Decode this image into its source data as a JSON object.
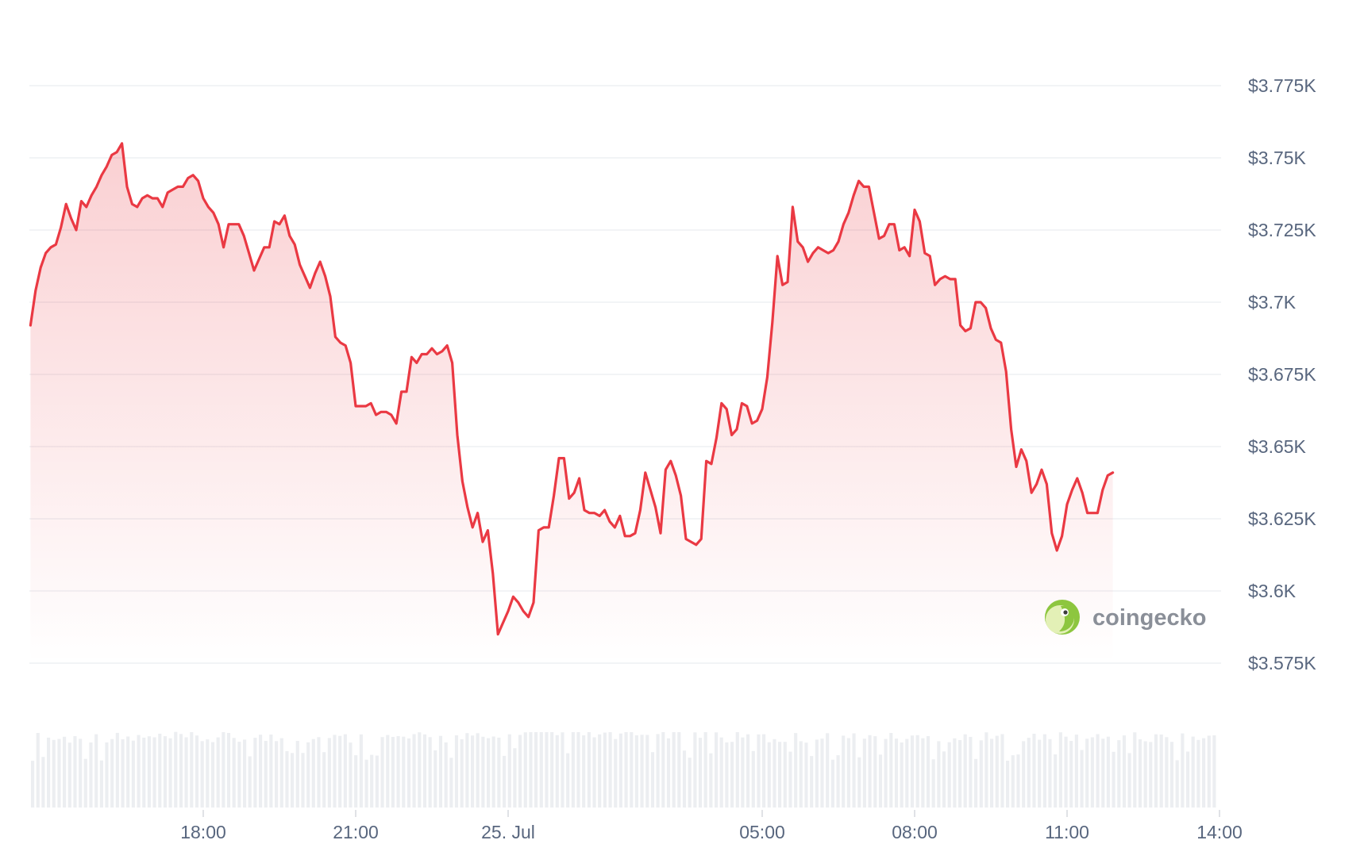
{
  "chart_data": {
    "type": "area",
    "y_ticks": [
      "$3.775K",
      "$3.75K",
      "$3.725K",
      "$3.7K",
      "$3.675K",
      "$3.65K",
      "$3.625K",
      "$3.6K",
      "$3.575K"
    ],
    "y_tick_values": [
      3775,
      3750,
      3725,
      3700,
      3675,
      3650,
      3625,
      3600,
      3575
    ],
    "ylim": [
      3575,
      3775
    ],
    "x_ticks": [
      {
        "label": "18:00",
        "t": 0
      },
      {
        "label": "21:00",
        "t": 3
      },
      {
        "label": "25. Jul",
        "t": 6
      },
      {
        "label": "05:00",
        "t": 11
      },
      {
        "label": "08:00",
        "t": 14
      },
      {
        "label": "11:00",
        "t": 17
      },
      {
        "label": "14:00",
        "t": 20
      }
    ],
    "x_unit": "hours since 18:00",
    "xlim": [
      -3.4,
      20.05
    ],
    "grid": true,
    "line_color": "#ea3943",
    "fill_color": "#ea3943",
    "volume_bar_color": "#eceef1",
    "watermark": "coingecko",
    "series": [
      {
        "values": [
          [
            -3.4,
            3692
          ],
          [
            -3.3,
            3704
          ],
          [
            -3.2,
            3712
          ],
          [
            -3.1,
            3717
          ],
          [
            -3.0,
            3719
          ],
          [
            -2.9,
            3720
          ],
          [
            -2.8,
            3726
          ],
          [
            -2.7,
            3734
          ],
          [
            -2.6,
            3729
          ],
          [
            -2.5,
            3725
          ],
          [
            -2.4,
            3735
          ],
          [
            -2.3,
            3733
          ],
          [
            -2.2,
            3737
          ],
          [
            -2.1,
            3740
          ],
          [
            -2.0,
            3744
          ],
          [
            -1.9,
            3747
          ],
          [
            -1.8,
            3751
          ],
          [
            -1.7,
            3752
          ],
          [
            -1.6,
            3755
          ],
          [
            -1.5,
            3740
          ],
          [
            -1.4,
            3734
          ],
          [
            -1.3,
            3733
          ],
          [
            -1.2,
            3736
          ],
          [
            -1.1,
            3737
          ],
          [
            -1.0,
            3736
          ],
          [
            -0.9,
            3736
          ],
          [
            -0.8,
            3733
          ],
          [
            -0.7,
            3738
          ],
          [
            -0.6,
            3739
          ],
          [
            -0.5,
            3740
          ],
          [
            -0.4,
            3740
          ],
          [
            -0.3,
            3743
          ],
          [
            -0.2,
            3744
          ],
          [
            -0.1,
            3742
          ],
          [
            0.0,
            3736
          ],
          [
            0.1,
            3733
          ],
          [
            0.2,
            3731
          ],
          [
            0.3,
            3727
          ],
          [
            0.4,
            3719
          ],
          [
            0.5,
            3727
          ],
          [
            0.6,
            3727
          ],
          [
            0.7,
            3727
          ],
          [
            0.8,
            3723
          ],
          [
            0.9,
            3717
          ],
          [
            1.0,
            3711
          ],
          [
            1.1,
            3715
          ],
          [
            1.2,
            3719
          ],
          [
            1.3,
            3719
          ],
          [
            1.4,
            3728
          ],
          [
            1.5,
            3727
          ],
          [
            1.6,
            3730
          ],
          [
            1.7,
            3723
          ],
          [
            1.8,
            3720
          ],
          [
            1.9,
            3713
          ],
          [
            2.0,
            3709
          ],
          [
            2.1,
            3705
          ],
          [
            2.2,
            3710
          ],
          [
            2.3,
            3714
          ],
          [
            2.4,
            3709
          ],
          [
            2.5,
            3702
          ],
          [
            2.6,
            3688
          ],
          [
            2.7,
            3686
          ],
          [
            2.8,
            3685
          ],
          [
            2.9,
            3679
          ],
          [
            3.0,
            3664
          ],
          [
            3.1,
            3664
          ],
          [
            3.2,
            3664
          ],
          [
            3.3,
            3665
          ],
          [
            3.4,
            3661
          ],
          [
            3.5,
            3662
          ],
          [
            3.6,
            3662
          ],
          [
            3.7,
            3661
          ],
          [
            3.8,
            3658
          ],
          [
            3.9,
            3669
          ],
          [
            4.0,
            3669
          ],
          [
            4.1,
            3681
          ],
          [
            4.2,
            3679
          ],
          [
            4.3,
            3682
          ],
          [
            4.4,
            3682
          ],
          [
            4.5,
            3684
          ],
          [
            4.6,
            3682
          ],
          [
            4.7,
            3683
          ],
          [
            4.8,
            3685
          ],
          [
            4.9,
            3679
          ],
          [
            5.0,
            3654
          ],
          [
            5.1,
            3638
          ],
          [
            5.2,
            3629
          ],
          [
            5.3,
            3622
          ],
          [
            5.4,
            3627
          ],
          [
            5.5,
            3617
          ],
          [
            5.6,
            3621
          ],
          [
            5.7,
            3606
          ],
          [
            5.8,
            3585
          ],
          [
            5.9,
            3589
          ],
          [
            6.0,
            3593
          ],
          [
            6.1,
            3598
          ],
          [
            6.2,
            3596
          ],
          [
            6.3,
            3593
          ],
          [
            6.4,
            3591
          ],
          [
            6.5,
            3596
          ],
          [
            6.6,
            3621
          ],
          [
            6.7,
            3622
          ],
          [
            6.8,
            3622
          ],
          [
            6.9,
            3633
          ],
          [
            7.0,
            3646
          ],
          [
            7.1,
            3646
          ],
          [
            7.2,
            3632
          ],
          [
            7.3,
            3634
          ],
          [
            7.4,
            3639
          ],
          [
            7.5,
            3628
          ],
          [
            7.6,
            3627
          ],
          [
            7.7,
            3627
          ],
          [
            7.8,
            3626
          ],
          [
            7.9,
            3628
          ],
          [
            8.0,
            3624
          ],
          [
            8.1,
            3622
          ],
          [
            8.2,
            3626
          ],
          [
            8.3,
            3619
          ],
          [
            8.4,
            3619
          ],
          [
            8.5,
            3620
          ],
          [
            8.6,
            3628
          ],
          [
            8.7,
            3641
          ],
          [
            8.8,
            3635
          ],
          [
            8.9,
            3629
          ],
          [
            9.0,
            3620
          ],
          [
            9.1,
            3642
          ],
          [
            9.2,
            3645
          ],
          [
            9.3,
            3640
          ],
          [
            9.4,
            3633
          ],
          [
            9.5,
            3618
          ],
          [
            9.6,
            3617
          ],
          [
            9.7,
            3616
          ],
          [
            9.8,
            3618
          ],
          [
            9.9,
            3645
          ],
          [
            10.0,
            3644
          ],
          [
            10.1,
            3653
          ],
          [
            10.2,
            3665
          ],
          [
            10.3,
            3663
          ],
          [
            10.4,
            3654
          ],
          [
            10.5,
            3656
          ],
          [
            10.6,
            3665
          ],
          [
            10.7,
            3664
          ],
          [
            10.8,
            3658
          ],
          [
            10.9,
            3659
          ],
          [
            11.0,
            3663
          ],
          [
            11.1,
            3674
          ],
          [
            11.2,
            3693
          ],
          [
            11.3,
            3716
          ],
          [
            11.4,
            3706
          ],
          [
            11.5,
            3707
          ],
          [
            11.6,
            3733
          ],
          [
            11.7,
            3721
          ],
          [
            11.8,
            3719
          ],
          [
            11.9,
            3714
          ],
          [
            12.0,
            3717
          ],
          [
            12.1,
            3719
          ],
          [
            12.2,
            3718
          ],
          [
            12.3,
            3717
          ],
          [
            12.4,
            3718
          ],
          [
            12.5,
            3721
          ],
          [
            12.6,
            3727
          ],
          [
            12.7,
            3731
          ],
          [
            12.8,
            3737
          ],
          [
            12.9,
            3742
          ],
          [
            13.0,
            3740
          ],
          [
            13.1,
            3740
          ],
          [
            13.2,
            3731
          ],
          [
            13.3,
            3722
          ],
          [
            13.4,
            3723
          ],
          [
            13.5,
            3727
          ],
          [
            13.6,
            3727
          ],
          [
            13.7,
            3718
          ],
          [
            13.8,
            3719
          ],
          [
            13.9,
            3716
          ],
          [
            14.0,
            3732
          ],
          [
            14.1,
            3728
          ],
          [
            14.2,
            3717
          ],
          [
            14.3,
            3716
          ],
          [
            14.4,
            3706
          ],
          [
            14.5,
            3708
          ],
          [
            14.6,
            3709
          ],
          [
            14.7,
            3708
          ],
          [
            14.8,
            3708
          ],
          [
            14.9,
            3692
          ],
          [
            15.0,
            3690
          ],
          [
            15.1,
            3691
          ],
          [
            15.2,
            3700
          ],
          [
            15.3,
            3700
          ],
          [
            15.4,
            3698
          ],
          [
            15.5,
            3691
          ],
          [
            15.6,
            3687
          ],
          [
            15.7,
            3686
          ],
          [
            15.8,
            3676
          ],
          [
            15.9,
            3656
          ],
          [
            16.0,
            3643
          ],
          [
            16.1,
            3649
          ],
          [
            16.2,
            3645
          ],
          [
            16.3,
            3634
          ],
          [
            16.4,
            3637
          ],
          [
            16.5,
            3642
          ],
          [
            16.6,
            3637
          ],
          [
            16.7,
            3620
          ],
          [
            16.8,
            3614
          ],
          [
            16.9,
            3619
          ],
          [
            17.0,
            3630
          ],
          [
            17.1,
            3635
          ],
          [
            17.2,
            3639
          ],
          [
            17.3,
            3634
          ],
          [
            17.4,
            3627
          ],
          [
            17.5,
            3627
          ],
          [
            17.6,
            3627
          ],
          [
            17.7,
            3635
          ],
          [
            17.8,
            3640
          ],
          [
            17.9,
            3641
          ]
        ]
      }
    ]
  }
}
